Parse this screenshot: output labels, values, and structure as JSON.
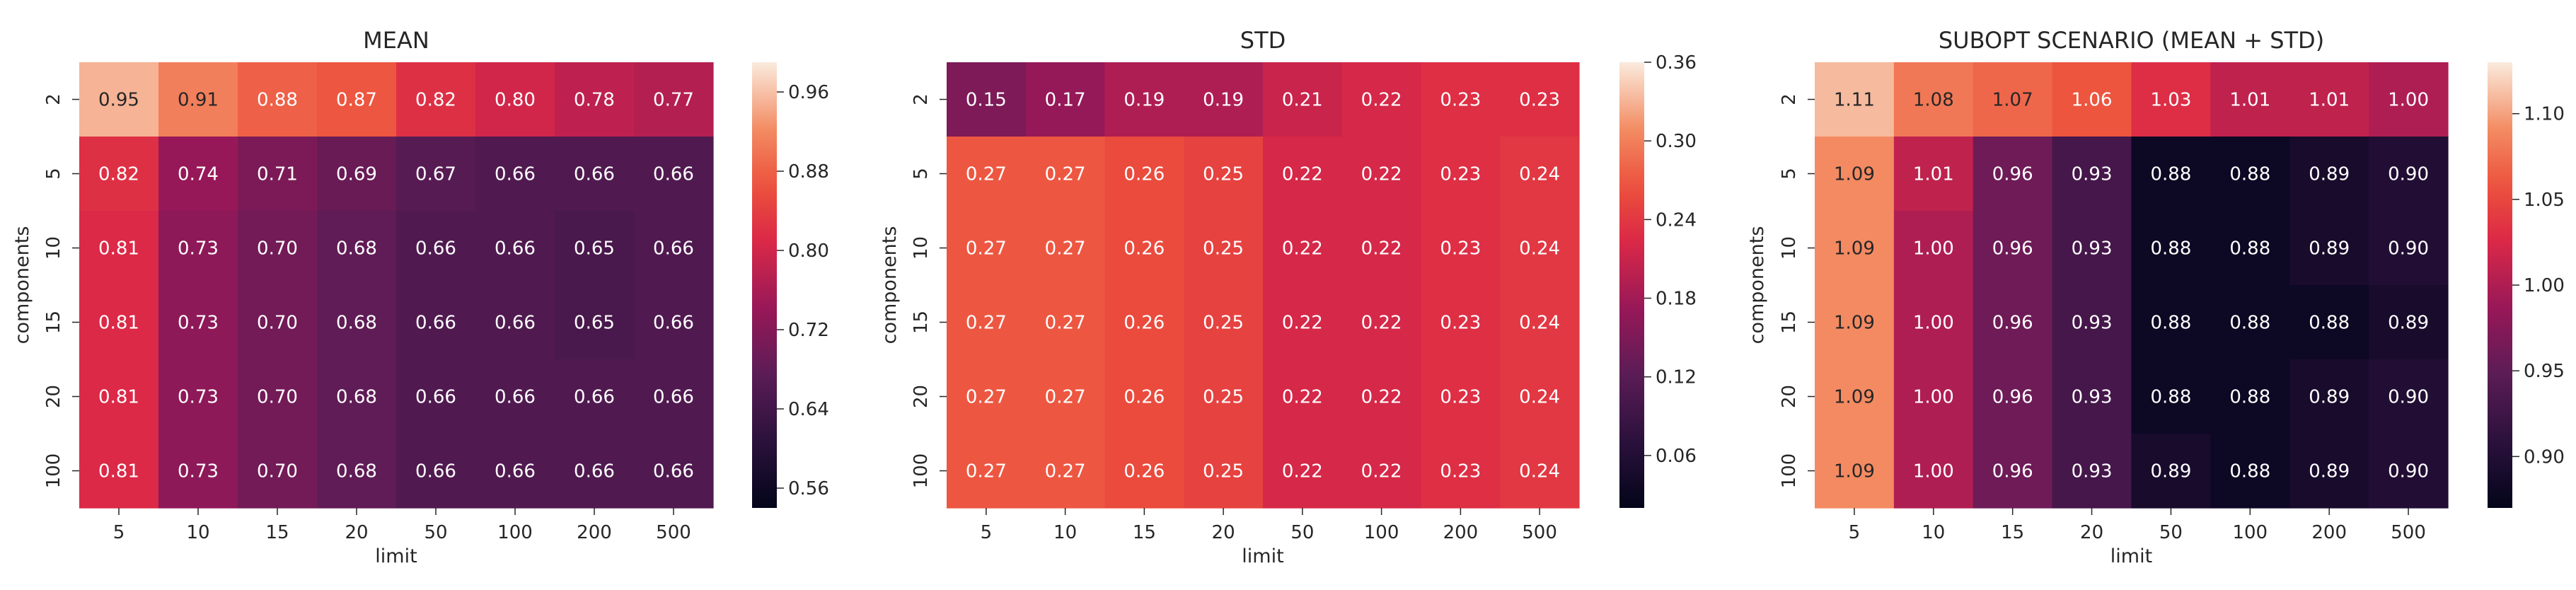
{
  "chart_data": [
    {
      "type": "heatmap",
      "title": "MEAN",
      "xlabel": "limit",
      "ylabel": "components",
      "x_categories": [
        "5",
        "10",
        "15",
        "20",
        "50",
        "100",
        "200",
        "500"
      ],
      "y_categories": [
        "2",
        "5",
        "10",
        "15",
        "20",
        "100"
      ],
      "values": [
        [
          0.95,
          0.91,
          0.88,
          0.87,
          0.82,
          0.8,
          0.78,
          0.77
        ],
        [
          0.82,
          0.74,
          0.71,
          0.69,
          0.67,
          0.66,
          0.66,
          0.66
        ],
        [
          0.81,
          0.73,
          0.7,
          0.68,
          0.66,
          0.66,
          0.65,
          0.66
        ],
        [
          0.81,
          0.73,
          0.7,
          0.68,
          0.66,
          0.66,
          0.65,
          0.66
        ],
        [
          0.81,
          0.73,
          0.7,
          0.68,
          0.66,
          0.66,
          0.66,
          0.66
        ],
        [
          0.81,
          0.73,
          0.7,
          0.68,
          0.66,
          0.66,
          0.66,
          0.66
        ]
      ],
      "colorbar": {
        "vmin": 0.54,
        "vmax": 0.99,
        "ticks": [
          0.56,
          0.64,
          0.72,
          0.8,
          0.88,
          0.96
        ],
        "tick_labels": [
          "0.56",
          "0.64",
          "0.72",
          "0.80",
          "0.88",
          "0.96"
        ]
      },
      "colormap": "rocket"
    },
    {
      "type": "heatmap",
      "title": "STD",
      "xlabel": "limit",
      "ylabel": "components",
      "x_categories": [
        "5",
        "10",
        "15",
        "20",
        "50",
        "100",
        "200",
        "500"
      ],
      "y_categories": [
        "2",
        "5",
        "10",
        "15",
        "20",
        "100"
      ],
      "values": [
        [
          0.15,
          0.17,
          0.19,
          0.19,
          0.21,
          0.22,
          0.23,
          0.23
        ],
        [
          0.27,
          0.27,
          0.26,
          0.25,
          0.22,
          0.22,
          0.23,
          0.24
        ],
        [
          0.27,
          0.27,
          0.26,
          0.25,
          0.22,
          0.22,
          0.23,
          0.24
        ],
        [
          0.27,
          0.27,
          0.26,
          0.25,
          0.22,
          0.22,
          0.23,
          0.24
        ],
        [
          0.27,
          0.27,
          0.26,
          0.25,
          0.22,
          0.22,
          0.23,
          0.24
        ],
        [
          0.27,
          0.27,
          0.26,
          0.25,
          0.22,
          0.22,
          0.23,
          0.24
        ]
      ],
      "colorbar": {
        "vmin": 0.02,
        "vmax": 0.36,
        "ticks": [
          0.06,
          0.12,
          0.18,
          0.24,
          0.3,
          0.36
        ],
        "tick_labels": [
          "0.06",
          "0.12",
          "0.18",
          "0.24",
          "0.30",
          "0.36"
        ]
      },
      "colormap": "rocket"
    },
    {
      "type": "heatmap",
      "title": "SUBOPT SCENARIO (MEAN + STD)",
      "xlabel": "limit",
      "ylabel": "components",
      "x_categories": [
        "5",
        "10",
        "15",
        "20",
        "50",
        "100",
        "200",
        "500"
      ],
      "y_categories": [
        "2",
        "5",
        "10",
        "15",
        "20",
        "100"
      ],
      "values": [
        [
          1.11,
          1.08,
          1.07,
          1.06,
          1.03,
          1.01,
          1.01,
          1.0
        ],
        [
          1.09,
          1.01,
          0.96,
          0.93,
          0.88,
          0.88,
          0.89,
          0.9
        ],
        [
          1.09,
          1.0,
          0.96,
          0.93,
          0.88,
          0.88,
          0.89,
          0.9
        ],
        [
          1.09,
          1.0,
          0.96,
          0.93,
          0.88,
          0.88,
          0.88,
          0.89
        ],
        [
          1.09,
          1.0,
          0.96,
          0.93,
          0.88,
          0.88,
          0.89,
          0.9
        ],
        [
          1.09,
          1.0,
          0.96,
          0.93,
          0.89,
          0.88,
          0.89,
          0.9
        ]
      ],
      "colorbar": {
        "vmin": 0.87,
        "vmax": 1.13,
        "ticks": [
          0.9,
          0.95,
          1.0,
          1.05,
          1.1
        ],
        "tick_labels": [
          "0.90",
          "0.95",
          "1.00",
          "1.05",
          "1.10"
        ]
      },
      "colormap": "rocket"
    }
  ]
}
